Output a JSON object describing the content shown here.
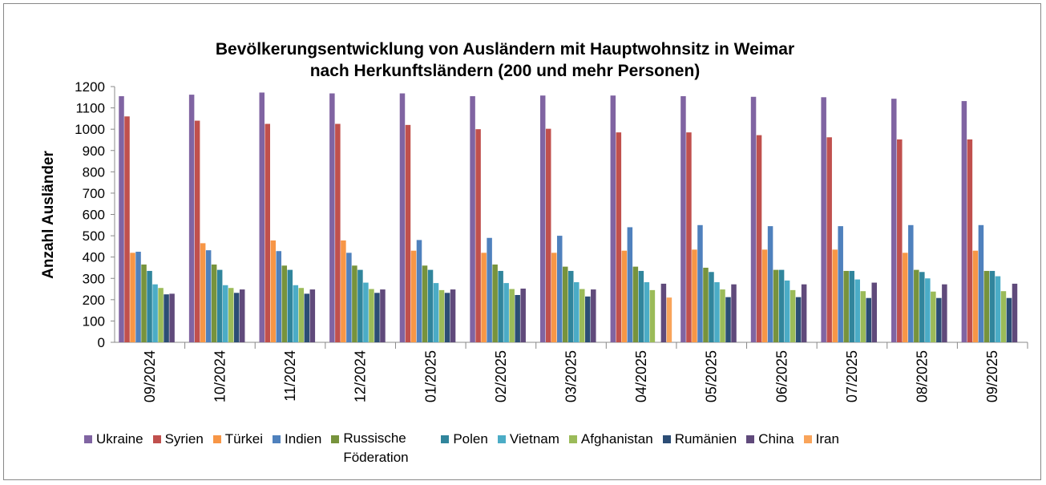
{
  "chart_data": {
    "type": "bar",
    "title": [
      "Bevölkerungsentwicklung von Ausländern  mit Hauptwohnsitz in Weimar",
      "nach Herkunftsländern (200 und mehr Personen)"
    ],
    "y_label": "Anzahl Ausländer",
    "categories": [
      "09/2024",
      "10/2024",
      "11/2024",
      "12/2024",
      "01/2025",
      "02/2025",
      "03/2025",
      "04/2025",
      "05/2025",
      "06/2025",
      "07/2025",
      "08/2025",
      "09/2025"
    ],
    "ylim": [
      0,
      1200
    ],
    "yticks": [
      0,
      100,
      200,
      300,
      400,
      500,
      600,
      700,
      800,
      900,
      1000,
      1100,
      1200
    ],
    "grid": false,
    "legend": "bottom",
    "series": [
      {
        "name": "Ukraine",
        "color": "#8064a2",
        "values": [
          1155,
          1162,
          1172,
          1168,
          1168,
          1155,
          1158,
          1158,
          1155,
          1152,
          1150,
          1143,
          1132
        ]
      },
      {
        "name": "Syrien",
        "color": "#c0504d",
        "values": [
          1060,
          1040,
          1025,
          1025,
          1020,
          1000,
          1002,
          985,
          985,
          972,
          962,
          952,
          952
        ]
      },
      {
        "name": "Türkei",
        "color": "#f79646",
        "values": [
          420,
          465,
          478,
          478,
          430,
          420,
          420,
          430,
          435,
          435,
          435,
          420,
          430
        ]
      },
      {
        "name": "Indien",
        "color": "#4f81bd",
        "values": [
          425,
          432,
          428,
          420,
          480,
          490,
          500,
          540,
          550,
          545,
          545,
          550,
          550
        ]
      },
      {
        "name": "Russische Föderation",
        "color": "#77933c",
        "values": [
          365,
          365,
          360,
          360,
          360,
          365,
          355,
          355,
          350,
          340,
          335,
          340,
          335
        ]
      },
      {
        "name": "Polen",
        "color": "#31859c",
        "values": [
          335,
          340,
          340,
          340,
          340,
          335,
          335,
          335,
          330,
          340,
          335,
          330,
          335
        ]
      },
      {
        "name": "Vietnam",
        "color": "#4bacc6",
        "values": [
          272,
          268,
          268,
          280,
          278,
          278,
          282,
          282,
          282,
          290,
          295,
          300,
          310
        ]
      },
      {
        "name": "Afghanistan",
        "color": "#9bbb59",
        "values": [
          255,
          255,
          255,
          250,
          245,
          250,
          250,
          245,
          248,
          245,
          240,
          238,
          240
        ]
      },
      {
        "name": "Rumänien",
        "color": "#2c4d75",
        "values": [
          225,
          232,
          228,
          232,
          232,
          222,
          215,
          null,
          212,
          212,
          208,
          208,
          208
        ]
      },
      {
        "name": "China",
        "color": "#604a7b",
        "values": [
          228,
          248,
          248,
          248,
          248,
          252,
          248,
          275,
          272,
          272,
          280,
          272,
          275
        ]
      },
      {
        "name": "Iran",
        "color": "#f9a45a",
        "values": [
          null,
          null,
          null,
          null,
          null,
          null,
          null,
          210,
          null,
          null,
          null,
          null,
          null
        ]
      }
    ]
  }
}
